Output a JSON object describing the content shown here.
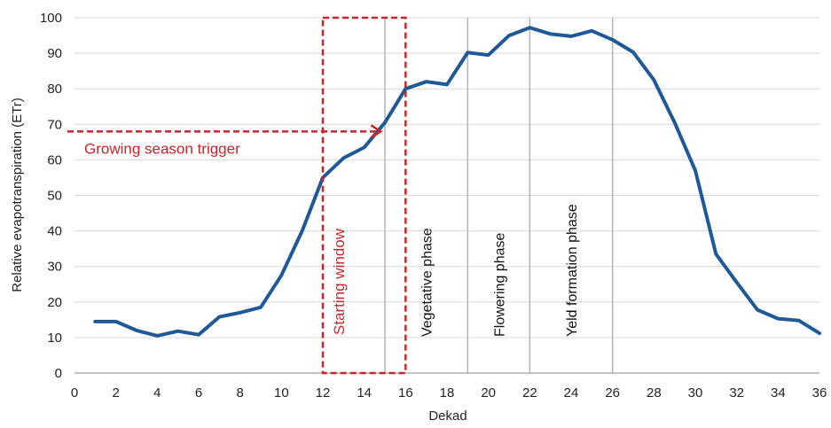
{
  "chart_data": {
    "type": "line",
    "title": "",
    "xlabel": "Dekad",
    "ylabel": "Relative evapotranspiration (ETr)",
    "xlim": [
      0,
      36
    ],
    "ylim": [
      0,
      100
    ],
    "xticks": [
      0,
      2,
      4,
      6,
      8,
      10,
      12,
      14,
      16,
      18,
      20,
      22,
      24,
      26,
      28,
      30,
      32,
      34,
      36
    ],
    "yticks": [
      0,
      10,
      20,
      30,
      40,
      50,
      60,
      70,
      80,
      90,
      100
    ],
    "grid": "horizontal",
    "series": [
      {
        "x": [
          1,
          2,
          3,
          4,
          5,
          6,
          7,
          8,
          9,
          10,
          11,
          12,
          13,
          14,
          15,
          16,
          17,
          18,
          19,
          20,
          21,
          22,
          23,
          24,
          25,
          26,
          27,
          28,
          29,
          30,
          31,
          32,
          33,
          34,
          35,
          36
        ],
        "values": [
          14.5,
          14.5,
          12,
          10.5,
          11.8,
          10.8,
          15.8,
          17,
          18.5,
          27.5,
          40,
          55,
          60.5,
          63.5,
          70.5,
          80,
          82,
          81.2,
          90.2,
          89.5,
          95,
          97.2,
          95.4,
          94.8,
          96.3,
          93.8,
          90.3,
          82.5,
          70.5,
          57,
          33.5,
          25.5,
          17.8,
          15.3,
          14.8,
          11.2
        ],
        "color": "#1f5a96"
      }
    ],
    "phase_lines": [
      15,
      19,
      22,
      26
    ],
    "phase_labels": [
      {
        "text": "Vegetative phase",
        "x": 17
      },
      {
        "text": "Flowering phase",
        "x": 20.5
      },
      {
        "text": "Yeld formation phase",
        "x": 24
      }
    ],
    "starting_window": {
      "label": "Starting window",
      "x_range": [
        12,
        16
      ],
      "y_range": [
        0,
        100
      ],
      "color": "#c8262c"
    },
    "trigger": {
      "label": "Growing season trigger",
      "y": 68,
      "x_end": 14.8,
      "color": "#c8262c"
    }
  }
}
